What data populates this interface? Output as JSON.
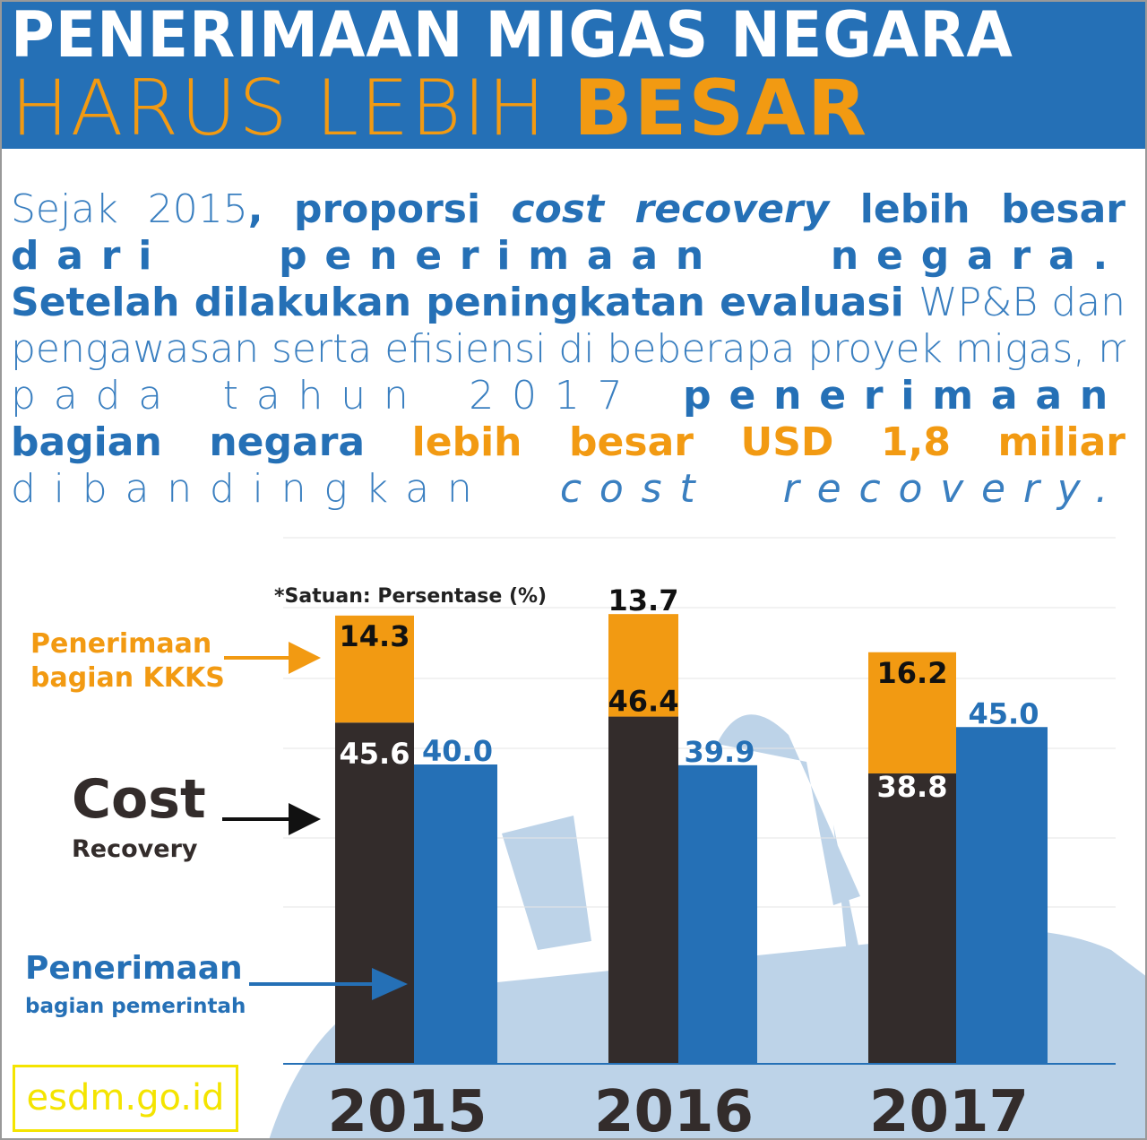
{
  "header": {
    "title_line1": "PENERIMAAN MIGAS NEGARA",
    "title_line2_light": "HARUS LEBIH ",
    "title_line2_bold": "BESAR"
  },
  "paragraph": {
    "lines": [
      [
        {
          "t": "Sejak 2015",
          "c": "thin"
        },
        {
          "t": ", proporsi ",
          "c": "bold"
        },
        {
          "t": "cost recovery",
          "c": "bold ital"
        },
        {
          "t": " lebih besar",
          "c": "bold"
        }
      ],
      [
        {
          "t": "dari penerimaan negara.",
          "c": "bold sp"
        }
      ],
      [
        {
          "t": "Setelah dilakukan peningkatan evaluasi ",
          "c": "bold"
        },
        {
          "t": "WP&B dan",
          "c": "thin"
        }
      ],
      [
        {
          "t": "pengawasan serta efisiensi di beberapa proyek migas, maka",
          "c": "thin"
        }
      ],
      [
        {
          "t": "pada tahun 2017 ",
          "c": "thin sp"
        },
        {
          "t": "penerimaan",
          "c": "bold sp"
        }
      ],
      [
        {
          "t": "bagian negara ",
          "c": "bold"
        },
        {
          "t": "lebih besar USD 1,8 miliar",
          "c": "orange"
        }
      ],
      [
        {
          "t": "dibandingkan ",
          "c": "thin sp"
        },
        {
          "t": "cost recovery.",
          "c": "thin ital sp"
        }
      ]
    ]
  },
  "legend": {
    "kkks_line1": "Penerimaan",
    "kkks_line2": "bagian KKKS",
    "cost_line1": "Cost",
    "cost_line2": "Recovery",
    "gov_line1": "Penerimaan",
    "gov_line2": "bagian pemerintah"
  },
  "footer": {
    "site": "esdm.go.id"
  },
  "colors": {
    "kkks": "#f29a12",
    "cost": "#332c2b",
    "gov": "#2570b6",
    "header": "#2570b6"
  },
  "chart_data": {
    "type": "bar",
    "unit_note": "*Satuan: Persentase (%)",
    "categories": [
      "2015",
      "2016",
      "2017"
    ],
    "series": [
      {
        "name": "Cost Recovery",
        "values": [
          45.6,
          46.4,
          38.8
        ],
        "stack": "a"
      },
      {
        "name": "Penerimaan bagian KKKS",
        "values": [
          14.3,
          13.7,
          16.2
        ],
        "stack": "a"
      },
      {
        "name": "Penerimaan bagian pemerintah",
        "values": [
          40.0,
          39.9,
          45.0
        ],
        "stack": "b"
      }
    ],
    "value_labels": {
      "cost": [
        "45.6",
        "46.4",
        "38.8"
      ],
      "kkks": [
        "14.3",
        "13.7",
        "16.2"
      ],
      "gov": [
        "40.0",
        "39.9",
        "45.0"
      ]
    },
    "grid": true
  }
}
